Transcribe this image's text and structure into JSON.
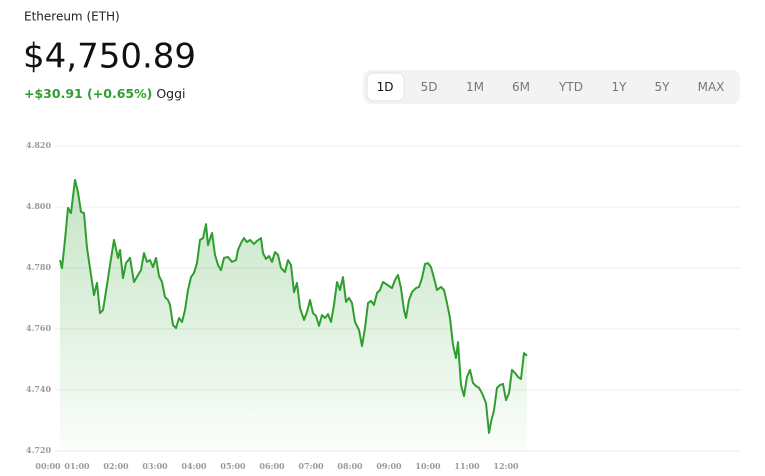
{
  "header": {
    "title": "Ethereum (ETH)",
    "price": "$4,750.89",
    "change": "+$30.91 (+0.65%)",
    "period": "Oggi"
  },
  "tabs": {
    "items": [
      "1D",
      "5D",
      "1M",
      "6M",
      "YTD",
      "1Y",
      "5Y",
      "MAX"
    ],
    "selected": 0
  },
  "chart_data": {
    "type": "line",
    "x": [
      0.564,
      0.615,
      0.692,
      0.769,
      0.846,
      0.949,
      1.026,
      1.103,
      1.179,
      1.256,
      1.359,
      1.436,
      1.513,
      1.59,
      1.667,
      1.769,
      1.846,
      1.949,
      2.051,
      2.103,
      2.179,
      2.256,
      2.359,
      2.462,
      2.564,
      2.641,
      2.718,
      2.795,
      2.872,
      2.949,
      3.026,
      3.103,
      3.179,
      3.256,
      3.333,
      3.385,
      3.462,
      3.538,
      3.615,
      3.692,
      3.769,
      3.846,
      3.923,
      4.0,
      4.077,
      4.154,
      4.231,
      4.308,
      4.359,
      4.462,
      4.538,
      4.615,
      4.692,
      4.769,
      4.872,
      4.974,
      5.077,
      5.128,
      5.205,
      5.282,
      5.359,
      5.436,
      5.538,
      5.615,
      5.718,
      5.769,
      5.846,
      5.923,
      6.0,
      6.077,
      6.154,
      6.231,
      6.333,
      6.41,
      6.487,
      6.564,
      6.641,
      6.718,
      6.821,
      6.897,
      6.974,
      7.051,
      7.128,
      7.205,
      7.282,
      7.359,
      7.436,
      7.513,
      7.59,
      7.667,
      7.744,
      7.821,
      7.897,
      7.974,
      8.051,
      8.128,
      8.231,
      8.308,
      8.385,
      8.462,
      8.538,
      8.615,
      8.692,
      8.769,
      8.846,
      8.923,
      9.0,
      9.077,
      9.154,
      9.231,
      9.308,
      9.385,
      9.436,
      9.513,
      9.59,
      9.692,
      9.769,
      9.846,
      9.923,
      10.0,
      10.077,
      10.154,
      10.231,
      10.333,
      10.41,
      10.487,
      10.564,
      10.641,
      10.718,
      10.769,
      10.846,
      10.923,
      11.0,
      11.077,
      11.154,
      11.231,
      11.308,
      11.385,
      11.487,
      11.564,
      11.615,
      11.692,
      11.769,
      11.846,
      11.923,
      12.0,
      12.077,
      12.154,
      12.231,
      12.308,
      12.385,
      12.462,
      12.538
    ],
    "series": [
      {
        "color": "#2e9f2e",
        "values": [
          4782.6,
          4780.0,
          4789.2,
          4799.7,
          4798.0,
          4808.9,
          4804.9,
          4798.4,
          4798.0,
          4786.6,
          4777.7,
          4771.1,
          4775.1,
          4765.2,
          4766.2,
          4774.4,
          4781.0,
          4789.2,
          4783.3,
          4785.9,
          4776.7,
          4781.6,
          4783.3,
          4775.4,
          4777.7,
          4779.3,
          4784.9,
          4782.0,
          4782.6,
          4780.3,
          4783.3,
          4777.4,
          4775.4,
          4770.5,
          4769.5,
          4767.9,
          4761.3,
          4760.3,
          4763.6,
          4762.3,
          4766.2,
          4772.8,
          4777.0,
          4778.4,
          4781.6,
          4789.2,
          4789.8,
          4794.4,
          4787.5,
          4791.5,
          4784.3,
          4781.0,
          4779.3,
          4783.3,
          4783.6,
          4782.0,
          4782.6,
          4785.9,
          4788.2,
          4789.8,
          4788.5,
          4789.2,
          4787.9,
          4788.9,
          4789.8,
          4784.9,
          4783.0,
          4783.9,
          4782.0,
          4785.2,
          4784.3,
          4780.0,
          4778.7,
          4782.6,
          4781.0,
          4772.1,
          4775.1,
          4766.9,
          4763.0,
          4765.6,
          4769.5,
          4765.2,
          4764.3,
          4761.0,
          4764.6,
          4763.6,
          4764.9,
          4762.3,
          4767.9,
          4775.4,
          4772.8,
          4777.0,
          4768.9,
          4770.2,
          4768.5,
          4762.3,
          4759.7,
          4754.4,
          4760.3,
          4768.5,
          4769.2,
          4767.9,
          4771.8,
          4772.8,
          4775.4,
          4774.8,
          4774.1,
          4773.4,
          4776.1,
          4777.7,
          4773.4,
          4766.2,
          4763.6,
          4769.5,
          4772.1,
          4773.4,
          4773.8,
          4776.7,
          4781.3,
          4781.6,
          4780.3,
          4776.7,
          4772.8,
          4773.8,
          4772.8,
          4768.5,
          4763.6,
          4754.8,
          4750.5,
          4755.7,
          4741.6,
          4738.0,
          4744.3,
          4746.6,
          4742.3,
          4741.3,
          4740.7,
          4739.0,
          4735.7,
          4725.9,
          4729.5,
          4733.4,
          4740.7,
          4741.6,
          4742.0,
          4736.7,
          4739.0,
          4746.6,
          4745.6,
          4744.3,
          4743.6,
          4752.1,
          4751.2
        ]
      }
    ],
    "xlim": [
      0,
      18
    ],
    "xticks": [
      {
        "value": 0,
        "label": "00:00"
      },
      {
        "value": 1,
        "label": "01:00"
      },
      {
        "value": 2,
        "label": "02:00"
      },
      {
        "value": 3,
        "label": "03:00"
      },
      {
        "value": 4,
        "label": "04:00"
      },
      {
        "value": 5,
        "label": "05:00"
      },
      {
        "value": 6,
        "label": "06:00"
      },
      {
        "value": 7,
        "label": "07:00"
      },
      {
        "value": 8,
        "label": "08:00"
      },
      {
        "value": 9,
        "label": "09:00"
      },
      {
        "value": 10,
        "label": "10:00"
      },
      {
        "value": 11,
        "label": "11:00"
      },
      {
        "value": 12,
        "label": "12:00"
      }
    ],
    "ylim": [
      4720,
      4820
    ],
    "yticks": [
      {
        "value": 4720,
        "label": "4.720"
      },
      {
        "value": 4740,
        "label": "4.740"
      },
      {
        "value": 4760,
        "label": "4.760"
      },
      {
        "value": 4780,
        "label": "4.780"
      },
      {
        "value": 4800,
        "label": "4.800"
      },
      {
        "value": 4820,
        "label": "4.820"
      }
    ],
    "grid": true
  }
}
